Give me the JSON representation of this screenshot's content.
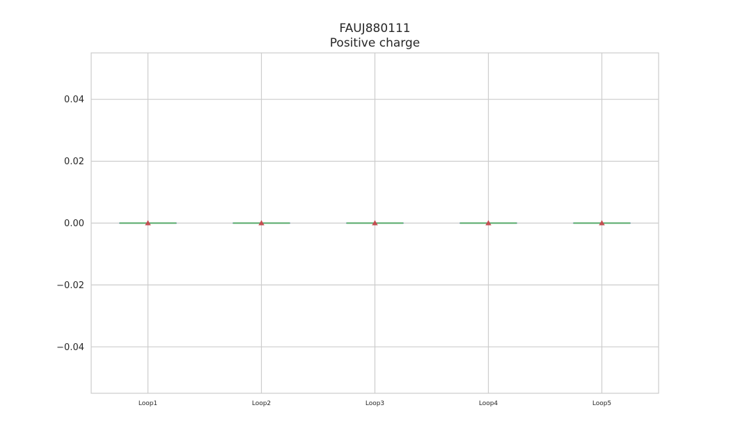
{
  "chart_data": {
    "type": "box",
    "title": "FAUJ880111",
    "subtitle": "Positive charge",
    "xlabel": "",
    "ylabel": "",
    "categories": [
      "Loop1",
      "Loop2",
      "Loop3",
      "Loop4",
      "Loop5"
    ],
    "boxes": [
      {
        "min": 0.0,
        "q1": 0.0,
        "median": 0.0,
        "q3": 0.0,
        "max": 0.0,
        "mean": 0.0
      },
      {
        "min": 0.0,
        "q1": 0.0,
        "median": 0.0,
        "q3": 0.0,
        "max": 0.0,
        "mean": 0.0
      },
      {
        "min": 0.0,
        "q1": 0.0,
        "median": 0.0,
        "q3": 0.0,
        "max": 0.0,
        "mean": 0.0
      },
      {
        "min": 0.0,
        "q1": 0.0,
        "median": 0.0,
        "q3": 0.0,
        "max": 0.0,
        "mean": 0.0
      },
      {
        "min": 0.0,
        "q1": 0.0,
        "median": 0.0,
        "q3": 0.0,
        "max": 0.0,
        "mean": 0.0
      }
    ],
    "ylim": [
      -0.055,
      0.055
    ],
    "yticks": [
      -0.04,
      -0.02,
      0.0,
      0.02,
      0.04
    ],
    "ytick_labels": [
      "−0.04",
      "−0.02",
      "0.00",
      "0.02",
      "0.04"
    ],
    "grid": true,
    "colors": {
      "grid": "#cccccc",
      "box_line": "#4c72b0",
      "median": "#55a868",
      "mean_marker": "#c44e52",
      "axes_edge": "#cccccc",
      "text": "#262626"
    }
  }
}
